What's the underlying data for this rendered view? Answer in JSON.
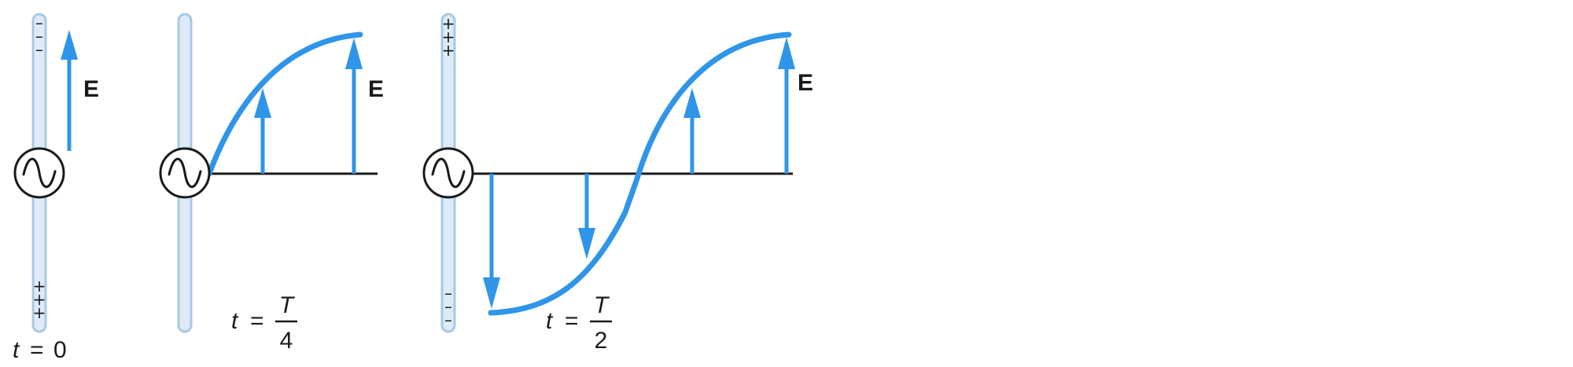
{
  "panels": [
    {
      "id": "t0",
      "field_label": "E",
      "time_variable": "t",
      "time_equals": "=",
      "time_value": "0",
      "charges_top": [
        "–",
        "–",
        "–"
      ],
      "charges_bottom": [
        "+",
        "+",
        "+"
      ]
    },
    {
      "id": "tT4",
      "field_label": "E",
      "time_variable": "t",
      "time_equals": "=",
      "time_numerator": "T",
      "time_denominator": "4"
    },
    {
      "id": "tT2",
      "field_label": "E",
      "time_variable": "t",
      "time_equals": "=",
      "time_numerator": "T",
      "time_denominator": "2",
      "charges_top": [
        "+",
        "+",
        "+"
      ],
      "charges_bottom": [
        "–",
        "–",
        "–"
      ]
    }
  ],
  "colors": {
    "field": "#2f95e8",
    "antenna": "#dcebf7",
    "ink": "#1a1a1a"
  },
  "icons": {
    "source": "ac-source-icon"
  }
}
